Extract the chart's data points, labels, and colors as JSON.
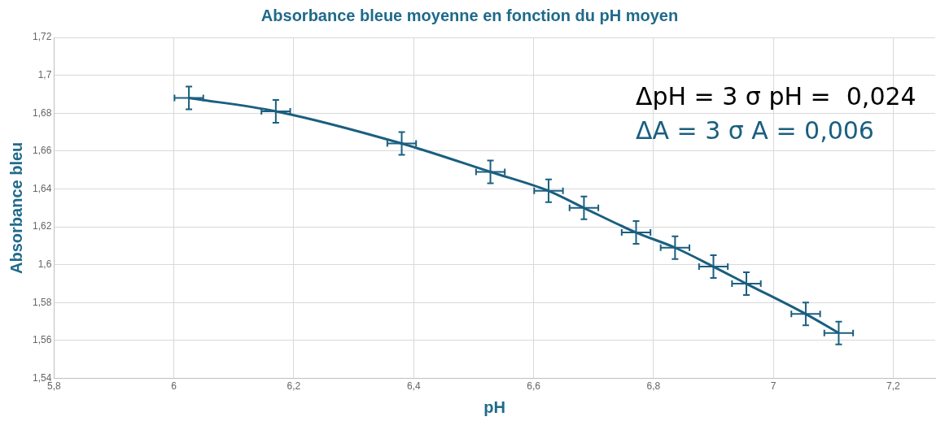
{
  "chart_data": {
    "type": "line",
    "title": "Absorbance bleue moyenne en fonction du pH moyen",
    "xlabel": "pH",
    "ylabel": "Absorbance bleu",
    "x": [
      6.025,
      6.17,
      6.38,
      6.528,
      6.625,
      6.684,
      6.771,
      6.836,
      6.9,
      6.955,
      7.054,
      7.109
    ],
    "series": [
      {
        "color": "#1a5f80",
        "values": [
          1.688,
          1.681,
          1.664,
          1.649,
          1.639,
          1.63,
          1.617,
          1.609,
          1.599,
          1.59,
          1.574,
          1.564
        ],
        "errors": [
          0.006,
          0.006,
          0.006,
          0.006,
          0.006,
          0.006,
          0.006,
          0.006,
          0.006,
          0.006,
          0.006,
          0.006
        ],
        "xerrors": [
          0.024,
          0.024,
          0.024,
          0.024,
          0.024,
          0.024,
          0.024,
          0.024,
          0.024,
          0.024,
          0.024,
          0.024
        ]
      }
    ],
    "xlim": [
      5.8,
      7.27
    ],
    "ylim": [
      1.54,
      1.72
    ],
    "xticks": [
      {
        "value": 5.8,
        "label": "5,8"
      },
      6,
      {
        "value": 6.2,
        "label": "6,2"
      },
      {
        "value": 6.4,
        "label": "6,4"
      },
      {
        "value": 6.6,
        "label": "6,6"
      },
      {
        "value": 6.8,
        "label": "6,8"
      },
      7,
      {
        "value": 7.2,
        "label": "7,2"
      }
    ],
    "yticks": [
      {
        "value": 1.54,
        "label": "1,54"
      },
      {
        "value": 1.56,
        "label": "1,56"
      },
      {
        "value": 1.58,
        "label": "1,58"
      },
      {
        "value": 1.6,
        "label": "1,6"
      },
      {
        "value": 1.62,
        "label": "1,62"
      },
      {
        "value": 1.64,
        "label": "1,64"
      },
      {
        "value": 1.66,
        "label": "1,66"
      },
      {
        "value": 1.68,
        "label": "1,68"
      },
      {
        "value": 1.7,
        "label": "1,7"
      },
      {
        "value": 1.72,
        "label": "1,72"
      }
    ],
    "grid": true,
    "marker": "none",
    "line_style": "solid",
    "annotations": [
      "ΔpH = 3 σ pH =  0,024",
      "ΔA = 3 σ A = 0,006"
    ]
  }
}
